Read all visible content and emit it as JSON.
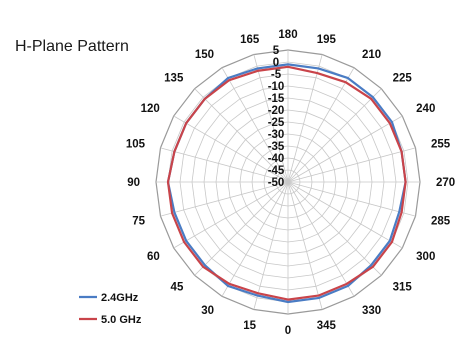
{
  "chart_data": {
    "type": "polar-line",
    "title": "H-Plane Pattern",
    "angle_labels": [
      "180",
      "195",
      "210",
      "225",
      "240",
      "255",
      "270",
      "285",
      "300",
      "315",
      "330",
      "345",
      "0",
      "15",
      "30",
      "45",
      "60",
      "75",
      "90",
      "105",
      "120",
      "135",
      "150",
      "165"
    ],
    "angle_values": [
      180,
      195,
      210,
      225,
      240,
      255,
      270,
      285,
      300,
      315,
      330,
      345,
      0,
      15,
      30,
      45,
      60,
      75,
      90,
      105,
      120,
      135,
      150,
      165
    ],
    "r_ticks": [
      "5",
      "0",
      "-5",
      "-10",
      "-15",
      "-20",
      "-25",
      "-30",
      "-35",
      "-40",
      "-45",
      "-50"
    ],
    "r_range": [
      -50,
      5
    ],
    "r_step": 5,
    "grid": true,
    "legend_position": "bottom-left",
    "series": [
      {
        "name": "2.4GHz",
        "color": "#4a7cc4",
        "points": [
          [
            0,
            0
          ],
          [
            15,
            -1
          ],
          [
            30,
            0
          ],
          [
            45,
            -1
          ],
          [
            60,
            -1
          ],
          [
            75,
            -1
          ],
          [
            90,
            0
          ],
          [
            105,
            -1
          ],
          [
            120,
            -1
          ],
          [
            135,
            -1
          ],
          [
            150,
            0
          ],
          [
            165,
            -1
          ],
          [
            180,
            -1
          ],
          [
            195,
            -1
          ],
          [
            210,
            0
          ],
          [
            225,
            0
          ],
          [
            240,
            0
          ],
          [
            255,
            -1
          ],
          [
            270,
            -1
          ],
          [
            285,
            -2
          ],
          [
            300,
            -1
          ],
          [
            315,
            -1
          ],
          [
            330,
            0
          ],
          [
            345,
            0
          ]
        ]
      },
      {
        "name": "5.0 GHz",
        "color": "#c9444a",
        "points": [
          [
            0,
            -1
          ],
          [
            15,
            -2
          ],
          [
            30,
            -1
          ],
          [
            45,
            0
          ],
          [
            60,
            0
          ],
          [
            75,
            0
          ],
          [
            90,
            0
          ],
          [
            105,
            -1
          ],
          [
            120,
            -1
          ],
          [
            135,
            -1
          ],
          [
            150,
            -1
          ],
          [
            165,
            -2
          ],
          [
            180,
            -2
          ],
          [
            195,
            -3
          ],
          [
            210,
            -2
          ],
          [
            225,
            -1
          ],
          [
            240,
            -1
          ],
          [
            255,
            -1
          ],
          [
            270,
            -1
          ],
          [
            285,
            -1
          ],
          [
            300,
            0
          ],
          [
            315,
            0
          ],
          [
            330,
            -1
          ],
          [
            345,
            -1
          ]
        ]
      }
    ]
  }
}
